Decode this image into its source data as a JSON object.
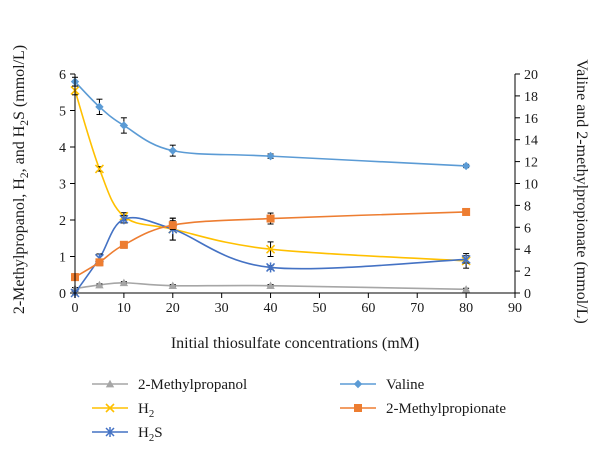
{
  "chart_data": {
    "type": "line",
    "xlabel": "Initial thiosulfate concentrations (mM)",
    "ylabel_left_parts": [
      "2-Methylpropanol, H",
      "2",
      ", and H",
      "2",
      "S (mmol/L)"
    ],
    "ylabel_right": "Valine and 2-methylpropionate (mmol/L)",
    "x_ticks": [
      0,
      10,
      20,
      30,
      40,
      50,
      60,
      70,
      80,
      90
    ],
    "xlim": [
      0,
      90
    ],
    "y_left_ticks": [
      0,
      1,
      2,
      3,
      4,
      5,
      6
    ],
    "ylim_left": [
      0,
      6
    ],
    "y_right_ticks": [
      0,
      2,
      4,
      6,
      8,
      10,
      12,
      14,
      16,
      18,
      20
    ],
    "ylim_right": [
      0,
      20
    ],
    "grid": false,
    "legend_position": "bottom",
    "x": [
      0,
      5,
      10,
      20,
      40,
      80
    ],
    "series": [
      {
        "name": "2-Methylpropanol",
        "legend_parts": [
          "2-Methylpropanol"
        ],
        "axis": "left",
        "marker": "triangle",
        "color": "#a6a6a6",
        "values": [
          0.12,
          0.22,
          0.28,
          0.2,
          0.2,
          0.1
        ],
        "errors": [
          0.03,
          0.03,
          0.03,
          0.03,
          0.03,
          0.03
        ]
      },
      {
        "name": "H2",
        "legend_parts": [
          "H",
          "2"
        ],
        "axis": "left",
        "marker": "x",
        "color": "#ffc000",
        "values": [
          5.55,
          3.4,
          2.1,
          1.75,
          1.2,
          0.88
        ],
        "errors": [
          0.12,
          0.06,
          0.1,
          0.3,
          0.2,
          0.2
        ]
      },
      {
        "name": "H2S",
        "legend_parts": [
          "H",
          "2",
          "S"
        ],
        "axis": "left",
        "marker": "star",
        "color": "#4472c4",
        "values": [
          0.0,
          0.95,
          2.02,
          1.75,
          0.7,
          0.92
        ],
        "errors": [
          0.05,
          0.12,
          0.1,
          0.3,
          0.05,
          0.1
        ]
      },
      {
        "name": "Valine",
        "legend_parts": [
          "Valine"
        ],
        "axis": "right",
        "marker": "diamond",
        "color": "#5b9bd5",
        "values": [
          19.3,
          17.0,
          15.3,
          13.0,
          12.5,
          11.6
        ],
        "errors": [
          0.4,
          0.7,
          0.7,
          0.5,
          0.2,
          0.15
        ]
      },
      {
        "name": "2-Methylpropionate",
        "legend_parts": [
          "2-Methylpropionate"
        ],
        "axis": "right",
        "marker": "square",
        "color": "#ed7d31",
        "values": [
          1.45,
          2.8,
          4.4,
          6.2,
          6.8,
          7.4
        ],
        "errors": [
          0.3,
          0.3,
          0.3,
          0.4,
          0.5,
          0.2
        ]
      }
    ]
  }
}
